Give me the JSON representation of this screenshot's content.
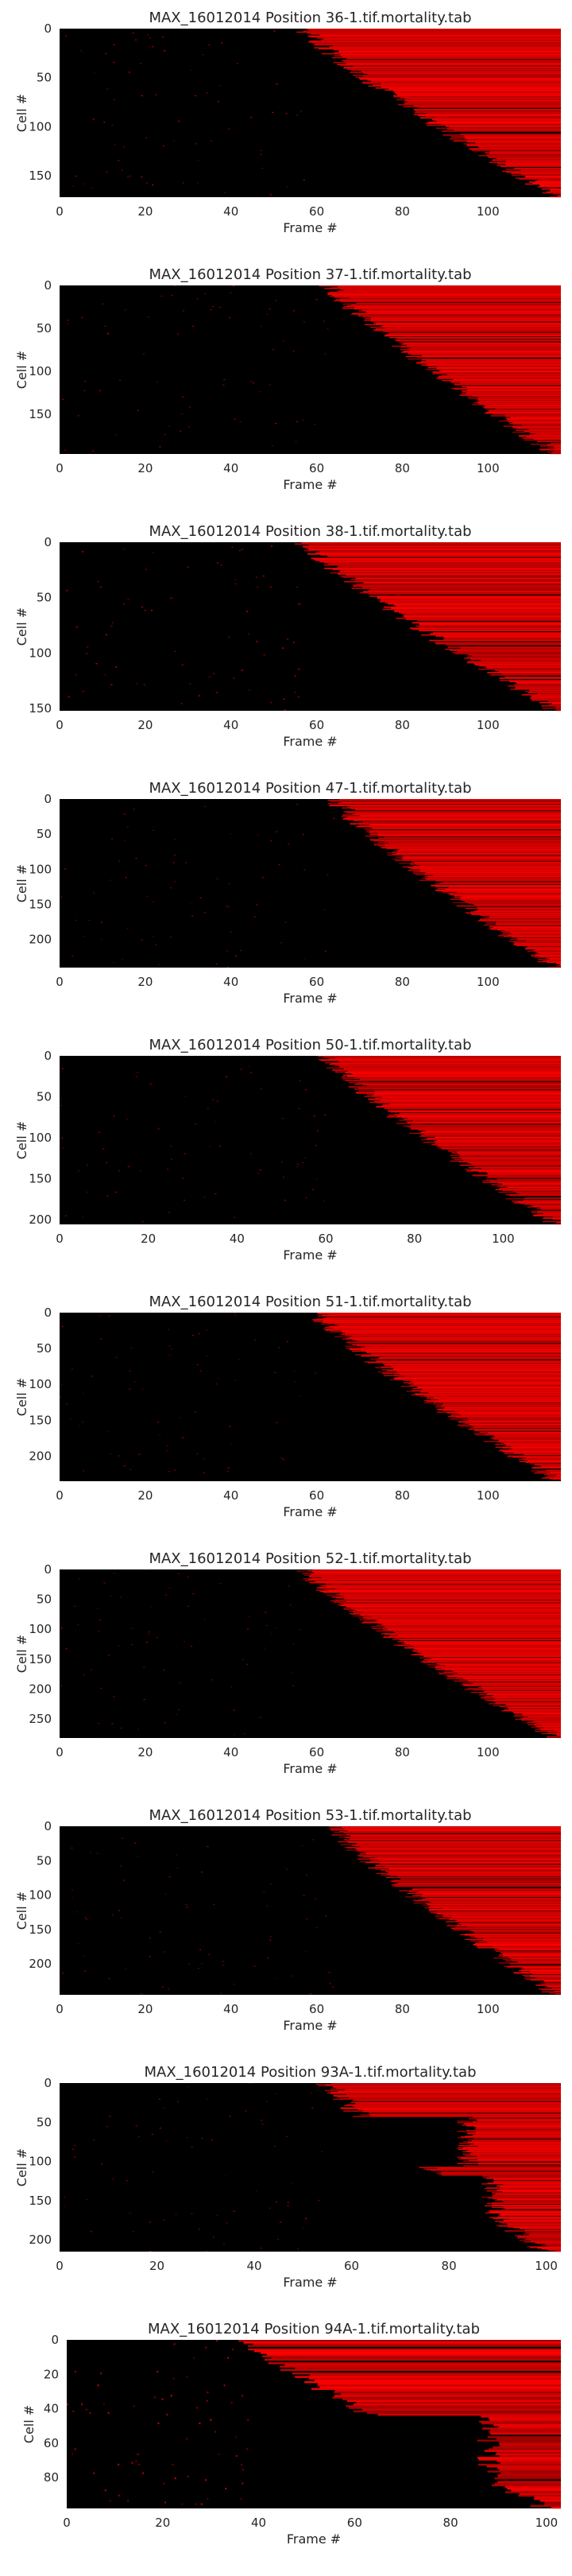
{
  "colors": {
    "background": "#000000",
    "dead": "#ff0000",
    "text": "#262626",
    "axis": "#262626"
  },
  "chart_data": [
    {
      "type": "heatmap",
      "title": "MAX_16012014 Position 36-1.tif.mortality.tab",
      "xlabel": "Frame #",
      "ylabel": "Cell #",
      "xlim": [
        0,
        117
      ],
      "ylim": [
        172,
        0
      ],
      "xticks": [
        "0",
        "20",
        "40",
        "60",
        "80",
        "100"
      ],
      "yticks": [
        "0",
        "50",
        "100",
        "150"
      ],
      "colormap": [
        "#000000",
        "#ff0000"
      ],
      "death_frame_range": [
        57,
        116
      ],
      "steps": []
    },
    {
      "type": "heatmap",
      "title": "MAX_16012014 Position 37-1.tif.mortality.tab",
      "xlabel": "Frame #",
      "ylabel": "Cell #",
      "xlim": [
        0,
        117
      ],
      "ylim": [
        196,
        0
      ],
      "xticks": [
        "0",
        "20",
        "40",
        "60",
        "80",
        "100"
      ],
      "yticks": [
        "0",
        "50",
        "100",
        "150"
      ],
      "colormap": [
        "#000000",
        "#ff0000"
      ],
      "death_frame_range": [
        63,
        116
      ],
      "steps": [
        [
          80,
          0.35,
          0.55
        ]
      ]
    },
    {
      "type": "heatmap",
      "title": "MAX_16012014 Position 38-1.tif.mortality.tab",
      "xlabel": "Frame #",
      "ylabel": "Cell #",
      "xlim": [
        0,
        117
      ],
      "ylim": [
        152,
        0
      ],
      "xticks": [
        "0",
        "20",
        "40",
        "60",
        "80",
        "100"
      ],
      "yticks": [
        "0",
        "50",
        "100",
        "150"
      ],
      "colormap": [
        "#000000",
        "#ff0000"
      ],
      "death_frame_range": [
        57,
        116
      ],
      "steps": []
    },
    {
      "type": "heatmap",
      "title": "MAX_16012014 Position 47-1.tif.mortality.tab",
      "xlabel": "Frame #",
      "ylabel": "Cell #",
      "xlim": [
        0,
        117
      ],
      "ylim": [
        240,
        0
      ],
      "xticks": [
        "0",
        "20",
        "40",
        "60",
        "80",
        "100"
      ],
      "yticks": [
        "0",
        "50",
        "100",
        "150",
        "200"
      ],
      "colormap": [
        "#000000",
        "#ff0000"
      ],
      "death_frame_range": [
        64,
        116
      ],
      "steps": [
        [
          68,
          0.05,
          0.2
        ],
        [
          82,
          0.45,
          0.65
        ]
      ]
    },
    {
      "type": "heatmap",
      "title": "MAX_16012014 Position 50-1.tif.mortality.tab",
      "xlabel": "Frame #",
      "ylabel": "Cell #",
      "xlim": [
        0,
        113
      ],
      "ylim": [
        206,
        0
      ],
      "xticks": [
        "0",
        "20",
        "40",
        "60",
        "80",
        "100"
      ],
      "yticks": [
        "0",
        "50",
        "100",
        "150",
        "200"
      ],
      "colormap": [
        "#000000",
        "#ff0000"
      ],
      "death_frame_range": [
        60,
        112
      ],
      "steps": [
        [
          100,
          0.85,
          0.95
        ]
      ]
    },
    {
      "type": "heatmap",
      "title": "MAX_16012014 Position 51-1.tif.mortality.tab",
      "xlabel": "Frame #",
      "ylabel": "Cell #",
      "xlim": [
        0,
        117
      ],
      "ylim": [
        235,
        0
      ],
      "xticks": [
        "0",
        "20",
        "40",
        "60",
        "80",
        "100"
      ],
      "yticks": [
        "0",
        "50",
        "100",
        "150",
        "200"
      ],
      "colormap": [
        "#000000",
        "#ff0000"
      ],
      "death_frame_range": [
        60,
        116
      ],
      "steps": [
        [
          85,
          0.55,
          0.7
        ]
      ]
    },
    {
      "type": "heatmap",
      "title": "MAX_16012014 Position 52-1.tif.mortality.tab",
      "xlabel": "Frame #",
      "ylabel": "Cell #",
      "xlim": [
        0,
        117
      ],
      "ylim": [
        282,
        0
      ],
      "xticks": [
        "0",
        "20",
        "40",
        "60",
        "80",
        "100"
      ],
      "yticks": [
        "0",
        "50",
        "100",
        "150",
        "200",
        "250"
      ],
      "colormap": [
        "#000000",
        "#ff0000"
      ],
      "death_frame_range": [
        57,
        116
      ],
      "steps": []
    },
    {
      "type": "heatmap",
      "title": "MAX_16012014 Position 53-1.tif.mortality.tab",
      "xlabel": "Frame #",
      "ylabel": "Cell #",
      "xlim": [
        0,
        117
      ],
      "ylim": [
        245,
        0
      ],
      "xticks": [
        "0",
        "20",
        "40",
        "60",
        "80",
        "100"
      ],
      "yticks": [
        "0",
        "50",
        "100",
        "150",
        "200"
      ],
      "colormap": [
        "#000000",
        "#ff0000"
      ],
      "death_frame_range": [
        64,
        116
      ],
      "steps": [
        [
          88,
          0.5,
          0.7
        ]
      ]
    },
    {
      "type": "heatmap",
      "title": "MAX_16012014 Position 93A-1.tif.mortality.tab",
      "xlabel": "Frame #",
      "ylabel": "Cell #",
      "xlim": [
        0,
        103
      ],
      "ylim": [
        215,
        0
      ],
      "xticks": [
        "0",
        "20",
        "40",
        "60",
        "80",
        "100"
      ],
      "yticks": [
        "0",
        "50",
        "100",
        "150",
        "200"
      ],
      "colormap": [
        "#000000",
        "#ff0000"
      ],
      "death_frame_range": [
        55,
        100
      ],
      "steps": [
        [
          84,
          0.2,
          0.5
        ],
        [
          89,
          0.55,
          0.95
        ]
      ]
    },
    {
      "type": "heatmap",
      "title": "MAX_16012014 Position 94A-1.tif.mortality.tab",
      "xlabel": "Frame #",
      "ylabel": "Cell #",
      "xlim": [
        0,
        103
      ],
      "ylim": [
        98,
        0
      ],
      "xticks": [
        "0",
        "20",
        "40",
        "60",
        "80",
        "100"
      ],
      "yticks": [
        "0",
        "20",
        "40",
        "60",
        "80"
      ],
      "colormap": [
        "#000000",
        "#ff0000"
      ],
      "death_frame_range": [
        38,
        100
      ],
      "steps": [
        [
          80,
          0.5,
          0.75
        ],
        [
          88,
          0.45,
          0.95
        ]
      ]
    }
  ]
}
